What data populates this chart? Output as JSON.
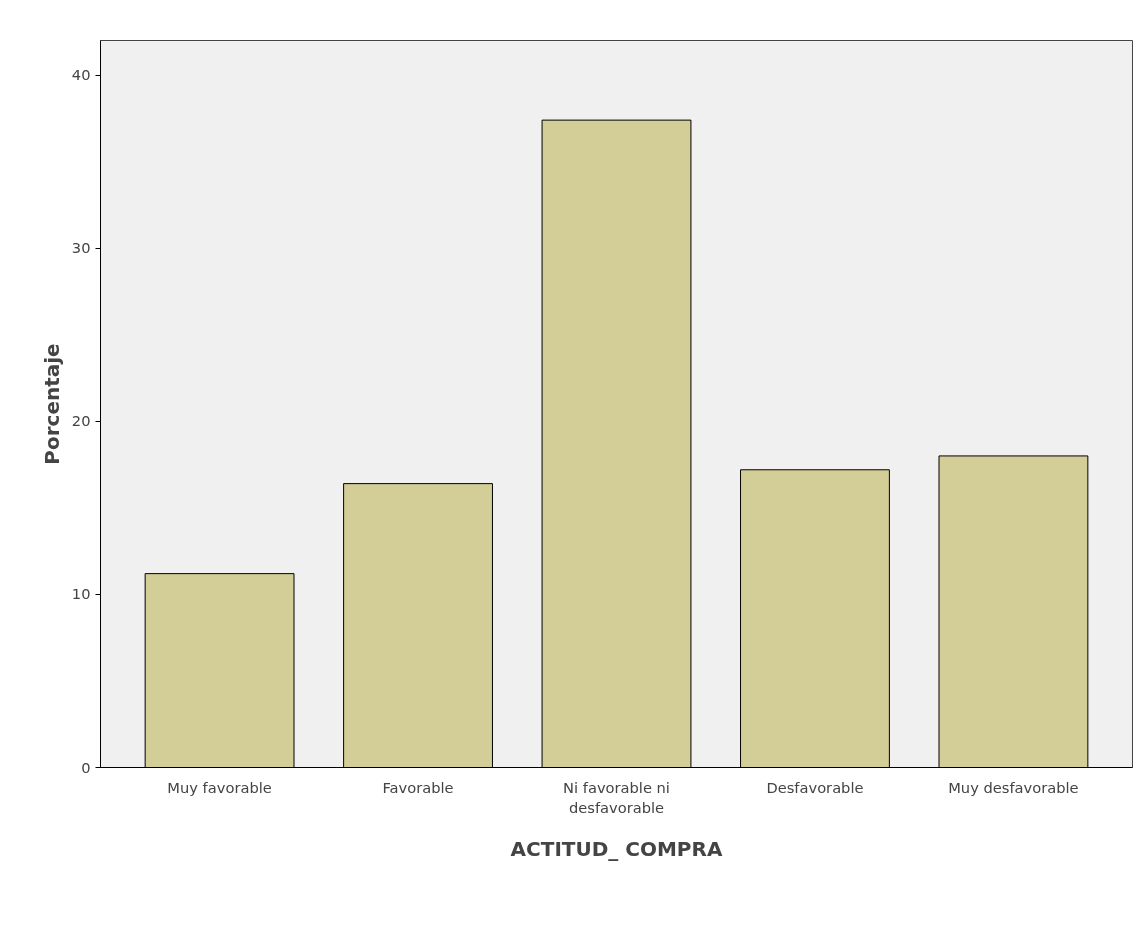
{
  "chart_data": {
    "type": "bar",
    "xlabel": "ACTITUD_ COMPRA",
    "ylabel": "Porcentaje",
    "categories": [
      "Muy favorable",
      "Favorable",
      "Ni favorable ni desfavorable",
      "Desfavorable",
      "Muy desfavorable"
    ],
    "values": [
      11.2,
      16.4,
      37.4,
      17.2,
      18.0
    ],
    "color": "#d3ce97",
    "ylim": [
      0,
      42
    ],
    "yticks": [
      0,
      10,
      20,
      30,
      40
    ],
    "grid": false
  }
}
